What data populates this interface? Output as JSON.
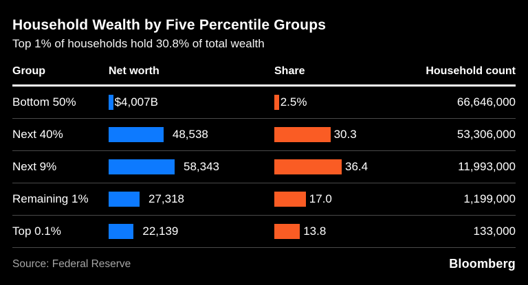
{
  "header": {
    "title": "Household Wealth by Five Percentile Groups",
    "subtitle": "Top 1% of households hold 30.8% of total wealth"
  },
  "table": {
    "columns": [
      "Group",
      "Net worth",
      "Share",
      "Household count"
    ]
  },
  "footer": {
    "source": "Source: Federal Reserve",
    "brand": "Bloomberg"
  },
  "colors": {
    "background": "#000000",
    "net_worth_bar": "#0d7aff",
    "share_bar": "#fa5c24",
    "divider": "#4a4a4a",
    "header_rule": "#ffffff",
    "source_text": "#a6a6a6"
  },
  "chart_data": {
    "type": "bar",
    "title": "Household Wealth by Five Percentile Groups",
    "subtitle": "Top 1% of households hold 30.8% of total wealth",
    "columns": [
      "Group",
      "Net worth",
      "Share",
      "Household count"
    ],
    "categories": [
      "Bottom 50%",
      "Next 40%",
      "Next 9%",
      "Remaining 1%",
      "Top 0.1%"
    ],
    "series": [
      {
        "name": "Net worth",
        "values": [
          4007,
          48538,
          58343,
          27318,
          22139
        ],
        "labels": [
          "$4,007B",
          "48,538",
          "58,343",
          "27,318",
          "22,139"
        ],
        "color": "#0d7aff"
      },
      {
        "name": "Share",
        "values": [
          2.5,
          30.3,
          36.4,
          17.0,
          13.8
        ],
        "labels": [
          "2.5%",
          "30.3",
          "36.4",
          "17.0",
          "13.8"
        ],
        "color": "#fa5c24"
      },
      {
        "name": "Household count",
        "values": [
          66646000,
          53306000,
          11993000,
          1199000,
          133000
        ],
        "labels": [
          "66,646,000",
          "53,306,000",
          "11,993,000",
          "1,199,000",
          "133,000"
        ]
      }
    ],
    "source": "Source: Federal Reserve",
    "brand": "Bloomberg",
    "layout": {
      "legend": false,
      "grid": false,
      "value_label_position": "right",
      "background": "#000000"
    }
  }
}
